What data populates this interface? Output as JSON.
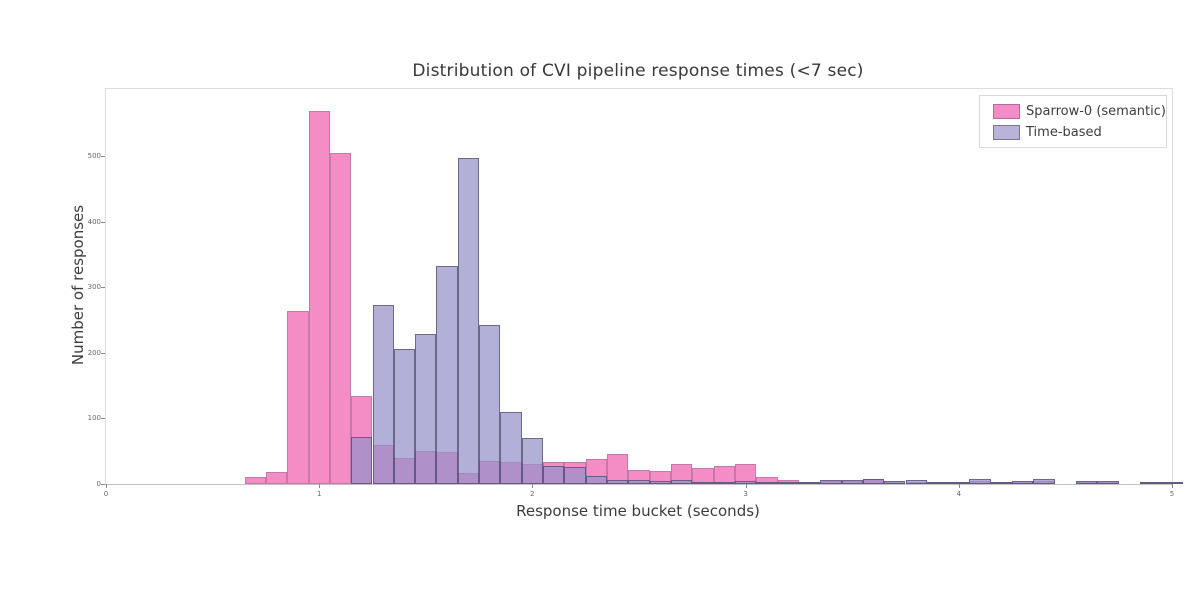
{
  "title": "Distribution of CVI pipeline response times (<7 sec)",
  "legend": {
    "items": [
      {
        "label": "Sparrow-0 (semantic)",
        "fill": "#f48cc5",
        "border": "#b06f9a"
      },
      {
        "label": "Time-based",
        "fill": "#b8b4d9",
        "border": "#76748f"
      }
    ]
  },
  "chart_data": {
    "type": "bar",
    "subtype": "overlaid-histogram",
    "title": "Distribution of CVI pipeline response times (<7 sec)",
    "xlabel": "Response time bucket (seconds)",
    "ylabel": "Number of responses",
    "xlim": [
      0,
      5
    ],
    "ylim": [
      0,
      602
    ],
    "x_ticks": [
      0,
      1,
      2,
      3,
      4,
      5
    ],
    "y_ticks": [
      0,
      100,
      200,
      300,
      400,
      500
    ],
    "grid": false,
    "legend_position": "top-right",
    "bucket_width": 0.1,
    "bucket_centers": [
      0.7,
      0.8,
      0.9,
      1.0,
      1.1,
      1.2,
      1.3,
      1.4,
      1.5,
      1.6,
      1.7,
      1.8,
      1.9,
      2.0,
      2.1,
      2.2,
      2.3,
      2.4,
      2.5,
      2.6,
      2.7,
      2.8,
      2.9,
      3.0,
      3.1,
      3.2,
      3.3,
      3.4,
      3.5,
      3.6,
      3.7,
      3.8,
      3.9,
      4.0,
      4.1,
      4.2,
      4.3,
      4.4,
      4.5,
      4.6,
      4.7,
      4.8,
      4.9,
      5.0
    ],
    "series": [
      {
        "name": "Sparrow-0 (semantic)",
        "fill": "#f48cc5",
        "border": "#c478a8",
        "values": [
          11,
          18,
          263,
          569,
          504,
          134,
          60,
          40,
          50,
          49,
          17,
          35,
          33,
          30,
          34,
          33,
          38,
          45,
          22,
          20,
          30,
          24,
          27,
          31,
          10,
          6,
          2,
          4,
          4,
          7,
          3,
          2,
          2,
          3,
          4,
          2,
          3,
          5,
          0,
          2,
          3,
          0,
          2,
          1
        ]
      },
      {
        "name": "Time-based",
        "fill": "rgba(150,145,201,0.72)",
        "border": "rgba(62,59,92,0.62)",
        "values": [
          0,
          0,
          0,
          0,
          0,
          72,
          273,
          206,
          229,
          332,
          497,
          243,
          109,
          70,
          28,
          26,
          12,
          6,
          6,
          5,
          6,
          3,
          3,
          5,
          3,
          3,
          3,
          6,
          6,
          7,
          5,
          6,
          3,
          2,
          7,
          3,
          5,
          7,
          0,
          4,
          5,
          0,
          3,
          2
        ]
      }
    ]
  }
}
